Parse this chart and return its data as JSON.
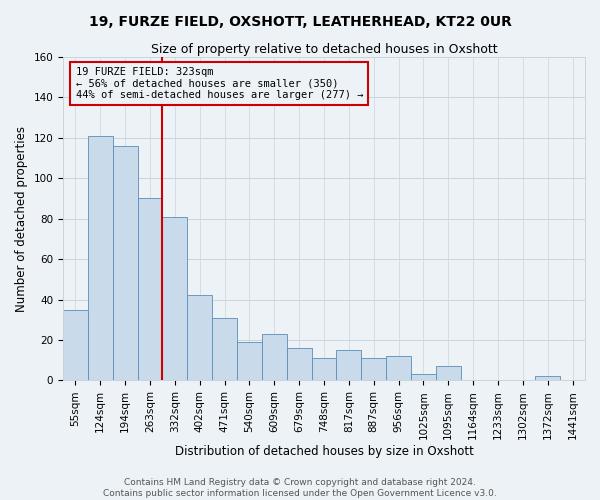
{
  "title_line1": "19, FURZE FIELD, OXSHOTT, LEATHERHEAD, KT22 0UR",
  "title_line2": "Size of property relative to detached houses in Oxshott",
  "xlabel": "Distribution of detached houses by size in Oxshott",
  "ylabel": "Number of detached properties",
  "categories": [
    "55sqm",
    "124sqm",
    "194sqm",
    "263sqm",
    "332sqm",
    "402sqm",
    "471sqm",
    "540sqm",
    "609sqm",
    "679sqm",
    "748sqm",
    "817sqm",
    "887sqm",
    "956sqm",
    "1025sqm",
    "1095sqm",
    "1164sqm",
    "1233sqm",
    "1302sqm",
    "1372sqm",
    "1441sqm"
  ],
  "values": [
    35,
    121,
    116,
    90,
    81,
    42,
    31,
    19,
    23,
    16,
    11,
    15,
    11,
    12,
    3,
    7,
    0,
    0,
    0,
    2,
    0
  ],
  "bar_color": "#c9daea",
  "bar_edge_color": "#5b8db8",
  "grid_color": "#c8d4de",
  "background_color": "#edf2f7",
  "annotation_box_text": "19 FURZE FIELD: 323sqm\n← 56% of detached houses are smaller (350)\n44% of semi-detached houses are larger (277) →",
  "vline_x_index": 4,
  "vline_color": "#cc0000",
  "annotation_box_color": "#cc0000",
  "ylim": [
    0,
    160
  ],
  "yticks": [
    0,
    20,
    40,
    60,
    80,
    100,
    120,
    140,
    160
  ],
  "footer_line1": "Contains HM Land Registry data © Crown copyright and database right 2024.",
  "footer_line2": "Contains public sector information licensed under the Open Government Licence v3.0.",
  "title_fontsize": 10,
  "subtitle_fontsize": 9,
  "axis_label_fontsize": 8.5,
  "tick_fontsize": 7.5,
  "annotation_fontsize": 7.5,
  "footer_fontsize": 6.5
}
